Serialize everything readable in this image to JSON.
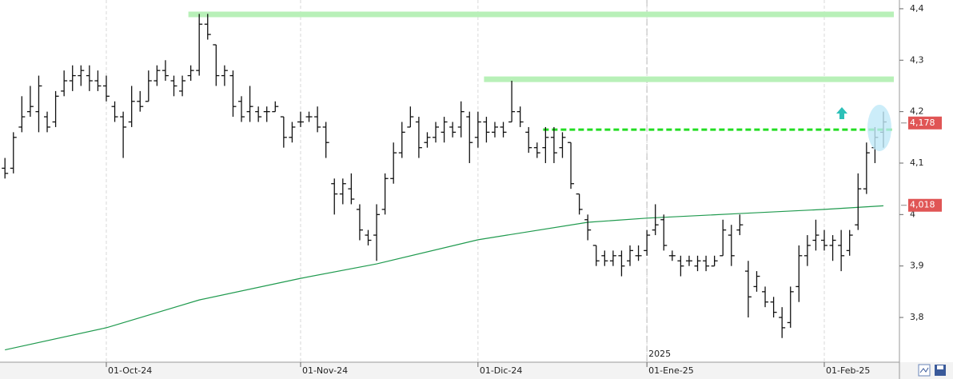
{
  "chart_data": {
    "type": "ohlc",
    "categories": [
      null,
      null,
      null,
      null,
      null,
      null,
      null,
      null,
      null,
      null,
      null,
      null,
      "01-Oct-24",
      null,
      null,
      null,
      null,
      null,
      null,
      null,
      null,
      null,
      null,
      null,
      null,
      null,
      null,
      null,
      null,
      null,
      null,
      null,
      null,
      null,
      null,
      "01-Nov-24",
      null,
      null,
      null,
      null,
      null,
      null,
      null,
      null,
      null,
      null,
      null,
      null,
      null,
      null,
      null,
      null,
      null,
      null,
      null,
      null,
      "01-Dic-24",
      null,
      null,
      null,
      null,
      null,
      null,
      null,
      null,
      null,
      null,
      null,
      null,
      null,
      null,
      null,
      null,
      null,
      null,
      null,
      "01-Ene-25",
      null,
      null,
      null,
      null,
      null,
      null,
      null,
      null,
      null,
      null,
      null,
      null,
      null,
      null,
      null,
      null,
      null,
      null,
      null,
      null,
      "01-Feb-25",
      null,
      null,
      null,
      null,
      null,
      null,
      null
    ],
    "open": [
      4.09,
      4.09,
      4.17,
      4.2,
      4.2,
      4.19,
      4.18,
      4.24,
      4.26,
      4.27,
      4.27,
      4.26,
      4.25,
      4.21,
      4.19,
      4.18,
      4.22,
      4.22,
      4.26,
      4.28,
      4.26,
      4.24,
      4.27,
      4.28,
      4.37,
      4.33,
      4.27,
      4.27,
      4.22,
      4.2,
      4.2,
      4.2,
      4.2,
      4.19,
      4.15,
      4.18,
      4.19,
      4.19,
      4.17,
      4.06,
      4.04,
      4.05,
      4.01,
      3.96,
      3.96,
      4.01,
      4.07,
      4.12,
      4.17,
      4.18,
      4.14,
      4.15,
      4.16,
      4.17,
      4.17,
      4.19,
      4.15,
      4.18,
      4.16,
      4.17,
      4.18,
      4.2,
      4.16,
      4.13,
      4.13,
      4.15,
      4.13,
      4.14,
      4.04,
      3.99,
      3.94,
      3.92,
      3.91,
      3.92,
      3.91,
      3.92,
      3.93,
      3.97,
      3.99,
      3.92,
      3.91,
      3.91,
      3.9,
      3.91,
      3.9,
      3.92,
      3.96,
      3.97,
      3.89,
      3.86,
      3.85,
      3.83,
      3.8,
      3.79,
      3.86,
      3.92,
      3.95,
      3.95,
      3.94,
      3.94,
      3.93,
      3.98,
      4.05,
      4.13,
      4.16
    ],
    "high": [
      4.11,
      4.16,
      4.23,
      4.25,
      4.27,
      4.2,
      4.24,
      4.28,
      4.29,
      4.29,
      4.29,
      4.28,
      4.27,
      4.22,
      4.2,
      4.25,
      4.24,
      4.28,
      4.29,
      4.3,
      4.27,
      4.27,
      4.29,
      4.39,
      4.39,
      4.33,
      4.29,
      4.28,
      4.23,
      4.25,
      4.21,
      4.21,
      4.22,
      4.19,
      4.18,
      4.2,
      4.2,
      4.21,
      4.18,
      4.07,
      4.07,
      4.08,
      4.02,
      3.97,
      4.02,
      4.08,
      4.14,
      4.18,
      4.21,
      4.19,
      4.16,
      4.18,
      4.19,
      4.18,
      4.22,
      4.2,
      4.2,
      4.19,
      4.18,
      4.18,
      4.26,
      4.21,
      4.17,
      4.14,
      4.17,
      4.17,
      4.16,
      4.14,
      4.04,
      4.0,
      3.94,
      3.93,
      3.93,
      3.93,
      3.94,
      3.94,
      3.97,
      4.02,
      4.0,
      3.93,
      3.92,
      3.92,
      3.92,
      3.92,
      3.92,
      3.99,
      3.98,
      4.0,
      3.91,
      3.89,
      3.86,
      3.84,
      3.82,
      3.86,
      3.94,
      3.96,
      3.99,
      3.97,
      3.96,
      3.97,
      3.97,
      4.08,
      4.14,
      4.17,
      4.2
    ],
    "low": [
      4.07,
      4.08,
      4.16,
      4.19,
      4.16,
      4.16,
      4.17,
      4.23,
      4.24,
      4.25,
      4.24,
      4.24,
      4.22,
      4.18,
      4.11,
      4.17,
      4.2,
      4.22,
      4.25,
      4.26,
      4.23,
      4.23,
      4.26,
      4.27,
      4.34,
      4.25,
      4.25,
      4.19,
      4.18,
      4.18,
      4.18,
      4.18,
      4.2,
      4.13,
      4.14,
      4.17,
      4.18,
      4.16,
      4.11,
      4.0,
      4.02,
      4.02,
      3.95,
      3.94,
      3.91,
      4.0,
      4.06,
      4.11,
      4.17,
      4.11,
      4.13,
      4.14,
      4.14,
      4.15,
      4.15,
      4.1,
      4.13,
      4.14,
      4.15,
      4.15,
      4.18,
      4.17,
      4.12,
      4.11,
      4.1,
      4.1,
      4.11,
      4.05,
      4.0,
      3.95,
      3.9,
      3.9,
      3.9,
      3.88,
      3.9,
      3.91,
      3.92,
      3.96,
      3.93,
      3.91,
      3.88,
      3.9,
      3.89,
      3.89,
      3.9,
      3.92,
      3.9,
      3.96,
      3.8,
      3.85,
      3.82,
      3.8,
      3.76,
      3.78,
      3.83,
      3.9,
      3.93,
      3.93,
      3.91,
      3.89,
      3.92,
      3.97,
      4.04,
      4.1,
      4.13
    ],
    "close": [
      4.08,
      4.15,
      4.19,
      4.21,
      4.25,
      4.17,
      4.23,
      4.26,
      4.27,
      4.28,
      4.26,
      4.25,
      4.23,
      4.19,
      4.17,
      4.22,
      4.21,
      4.26,
      4.28,
      4.27,
      4.25,
      4.26,
      4.28,
      4.37,
      4.35,
      4.27,
      4.28,
      4.21,
      4.19,
      4.21,
      4.19,
      4.2,
      4.21,
      4.15,
      4.17,
      4.18,
      4.19,
      4.17,
      4.14,
      4.04,
      4.06,
      4.03,
      3.97,
      3.95,
      4.0,
      4.07,
      4.12,
      4.16,
      4.19,
      4.13,
      4.15,
      4.17,
      4.18,
      4.16,
      4.2,
      4.14,
      4.18,
      4.16,
      4.17,
      4.16,
      4.2,
      4.18,
      4.13,
      4.12,
      4.15,
      4.12,
      4.15,
      4.06,
      4.01,
      3.97,
      3.91,
      3.91,
      3.92,
      3.9,
      3.93,
      3.92,
      3.96,
      3.98,
      3.94,
      3.92,
      3.9,
      3.91,
      3.91,
      3.9,
      3.91,
      3.97,
      3.92,
      3.98,
      3.84,
      3.88,
      3.83,
      3.81,
      3.78,
      3.85,
      3.92,
      3.94,
      3.96,
      3.94,
      3.95,
      3.92,
      3.96,
      4.05,
      4.12,
      4.15,
      4.18
    ],
    "bar_color": "#111111",
    "moving_average": {
      "color": "#1f9a4e",
      "x": [
        0,
        12,
        23,
        35,
        44,
        56,
        69,
        76,
        87,
        97,
        104
      ],
      "values": [
        3.737,
        3.78,
        3.834,
        3.876,
        3.904,
        3.951,
        3.985,
        3.993,
        4.002,
        4.01,
        4.017
      ]
    },
    "levels": [
      {
        "value": 4.389,
        "start": 22,
        "style": "band",
        "color": "#b8f0b8"
      },
      {
        "value": 4.263,
        "start": 57,
        "style": "band",
        "color": "#b8f0b8"
      },
      {
        "value": 4.165,
        "start": 64,
        "style": "dashed",
        "color": "#22dd22"
      }
    ],
    "price_labels": [
      {
        "value": 4.178,
        "label": "4,178",
        "color": "#e05555"
      },
      {
        "value": 4.018,
        "label": "4,018",
        "color": "#e05555"
      }
    ],
    "year_break": {
      "label": "2025",
      "category": "01-Ene-25"
    },
    "ylim": [
      3.713,
      4.417
    ],
    "yticks": [
      {
        "value": 3.8,
        "label": "3,8"
      },
      {
        "value": 3.9,
        "label": "3,9"
      },
      4,
      {
        "value": 4.1,
        "label": "4,1"
      },
      {
        "value": 4.2,
        "label": "4,2"
      },
      {
        "value": 4.3,
        "label": "4,3"
      },
      {
        "value": 4.4,
        "label": "4,4"
      }
    ]
  }
}
